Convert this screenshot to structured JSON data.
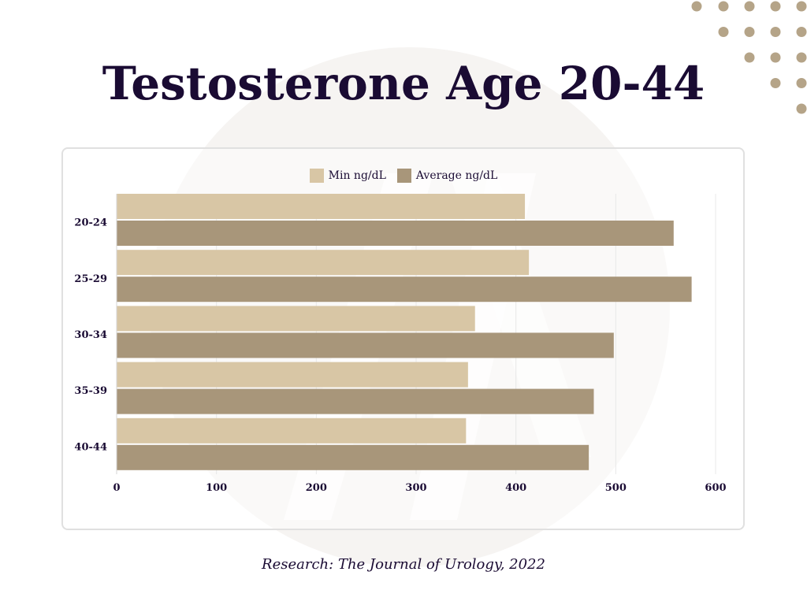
{
  "title": "Testosterone Age 20-44",
  "source": "Research: The Journal of Urology, 2022",
  "colors": {
    "min": "#d8c6a5",
    "average": "#a8967a",
    "dots": "#b5a488",
    "title": "#1a0b33",
    "watermark": "#f6f4f2"
  },
  "legend": [
    {
      "label": "Min ng/dL",
      "color": "#d8c6a5"
    },
    {
      "label": "Average ng/dL",
      "color": "#a8967a"
    }
  ],
  "chart_data": {
    "type": "bar",
    "orientation": "horizontal",
    "categories": [
      "20-24",
      "25-29",
      "30-34",
      "35-39",
      "40-44"
    ],
    "series": [
      {
        "name": "Min ng/dL",
        "values": [
          409,
          413,
          359,
          352,
          350
        ]
      },
      {
        "name": "Average ng/dL",
        "values": [
          558,
          576,
          498,
          478,
          473
        ]
      }
    ],
    "xlim": [
      0,
      600
    ],
    "xticks": [
      0,
      100,
      200,
      300,
      400,
      500,
      600
    ],
    "grid": true,
    "legend_position": "top-center"
  }
}
